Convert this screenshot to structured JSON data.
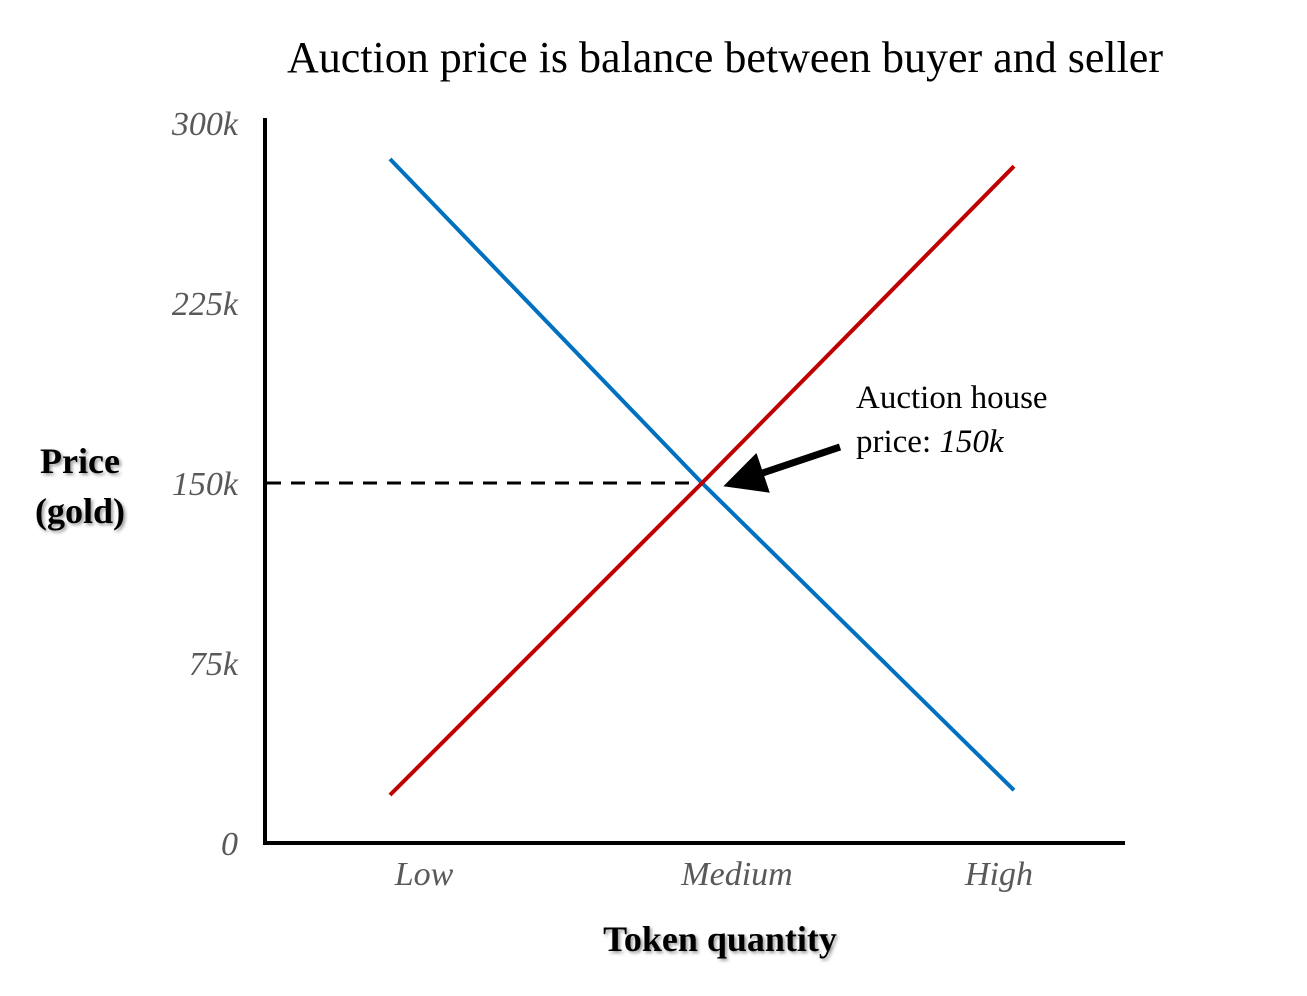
{
  "chart_data": {
    "type": "line",
    "title": "Auction price is balance between buyer and seller",
    "x_label": "Token quantity",
    "y_label": "Price (gold)",
    "categories": [
      "Low",
      "Medium",
      "High"
    ],
    "series": [
      {
        "color": "#0070c0",
        "values": [
          285000,
          150000,
          22000
        ]
      },
      {
        "color": "#c00000",
        "values": [
          20000,
          150000,
          282000
        ]
      }
    ],
    "ylim": [
      0,
      300000
    ],
    "yticks": [
      {
        "value": 0,
        "label": "0"
      },
      {
        "value": 75000,
        "label": "75k"
      },
      {
        "value": 150000,
        "label": "150k"
      },
      {
        "value": 225000,
        "label": "225k"
      },
      {
        "value": 300000,
        "label": "300k"
      }
    ],
    "annotation": "Auction house price:",
    "annotation_value": {
      "value": 150000,
      "label": "150k"
    }
  }
}
